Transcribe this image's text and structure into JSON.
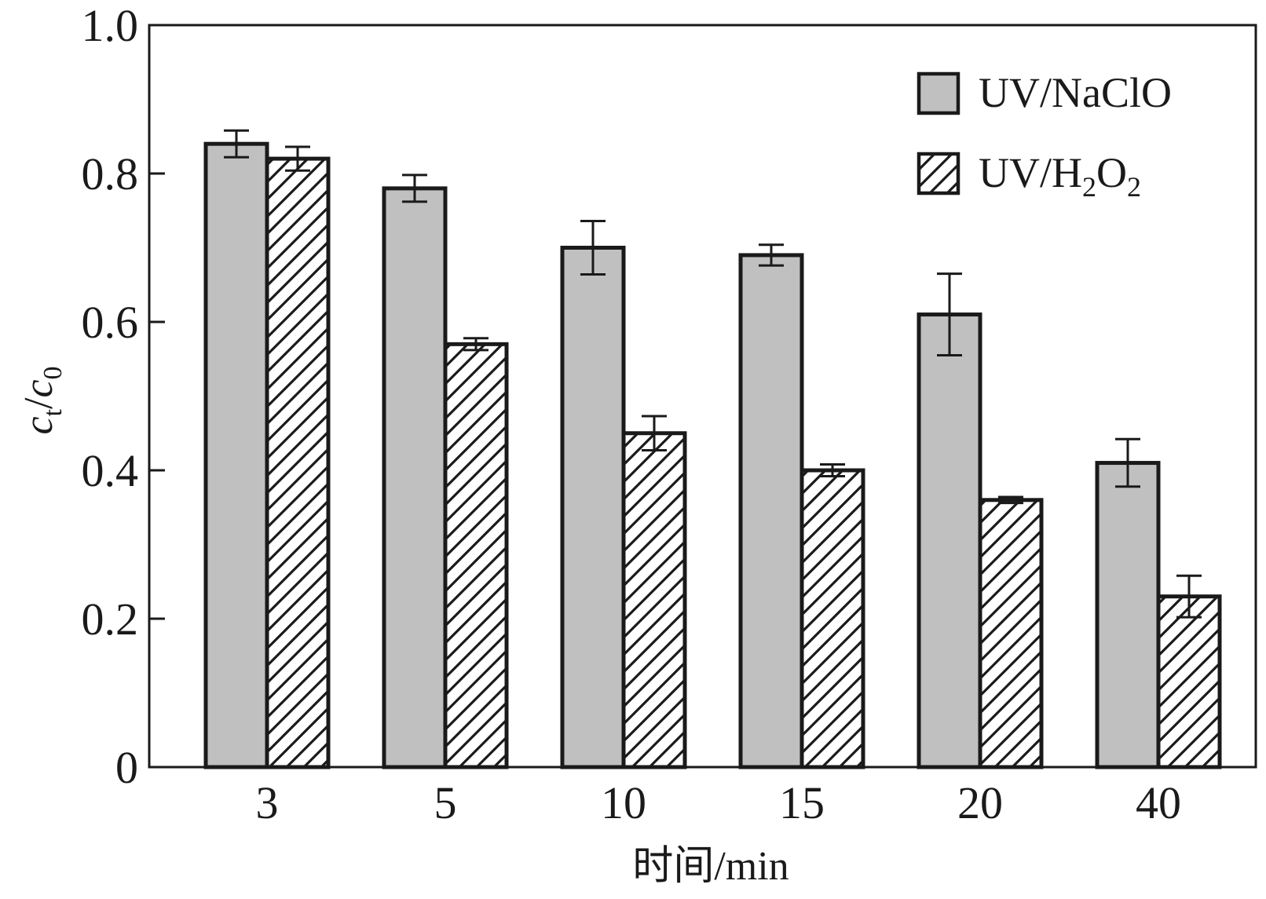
{
  "chart_data": {
    "type": "bar",
    "categories": [
      "3",
      "5",
      "10",
      "15",
      "20",
      "40"
    ],
    "xlabel": "时间/min",
    "ylabel": {
      "base1": "c",
      "sub1": "t",
      "slash": "/",
      "base2": "c",
      "sub2": "0"
    },
    "ylim": [
      0,
      1.0
    ],
    "yticks": [
      0,
      0.2,
      0.4,
      0.6,
      0.8,
      1.0
    ],
    "ytick_labels": [
      "0",
      "0.2",
      "0.4",
      "0.6",
      "0.8",
      "1.0"
    ],
    "grid": false,
    "legend_position": "top-right",
    "series": [
      {
        "name": "UV/NaClO",
        "legend": {
          "main": "UV/NaClO"
        },
        "fill": "#c0c0c0",
        "pattern": "solid",
        "values": [
          0.84,
          0.78,
          0.7,
          0.69,
          0.61,
          0.41
        ],
        "errors": [
          0.018,
          0.018,
          0.036,
          0.014,
          0.055,
          0.032
        ]
      },
      {
        "name": "UV/H2O2",
        "legend": {
          "p1": "UV/H",
          "s1": "2",
          "p2": "O",
          "s2": "2"
        },
        "fill": "#ffffff",
        "pattern": "hatch",
        "values": [
          0.82,
          0.57,
          0.45,
          0.4,
          0.36,
          0.23
        ],
        "errors": [
          0.016,
          0.008,
          0.023,
          0.008,
          0.004,
          0.028
        ]
      }
    ]
  },
  "colors": {
    "axis": "#1a1a1a",
    "bar_stroke": "#1a1a1a",
    "hatch_stroke": "#1a1a1a"
  }
}
